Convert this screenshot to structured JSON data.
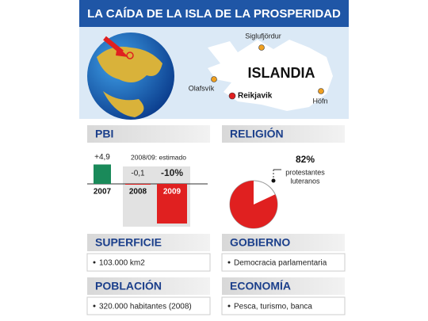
{
  "title": "LA CAÍDA DE LA ISLA DE LA PROSPERIDAD",
  "map": {
    "country": "ISLANDIA",
    "cities": [
      "Siglufjördur",
      "Olafsvík",
      "Reikjavik",
      "Höfn"
    ]
  },
  "pbi": {
    "heading": "PBI",
    "note": "2008/09: estimado",
    "categories": [
      "2007",
      "2008",
      "2009"
    ],
    "values": [
      4.9,
      -0.1,
      -10
    ],
    "value_labels": [
      "+4,9",
      "-0,1",
      "-10%"
    ],
    "colors": [
      "#1a8a5a",
      "#e02020",
      "#e02020"
    ]
  },
  "religion": {
    "heading": "RELIGIÓN",
    "value": 82,
    "value_label": "82%",
    "label": [
      "protestantes",
      "luteranos"
    ],
    "color": "#e02020"
  },
  "superficie": {
    "heading": "SUPERFICIE",
    "text": "103.000 km2"
  },
  "gobierno": {
    "heading": "GOBIERNO",
    "text": "Democracia parlamentaria"
  },
  "poblacion": {
    "heading": "POBLACIÓN",
    "text": "320.000 habitantes (2008)"
  },
  "economia": {
    "heading": "ECONOMÍA",
    "text": "Pesca, turismo, banca"
  }
}
